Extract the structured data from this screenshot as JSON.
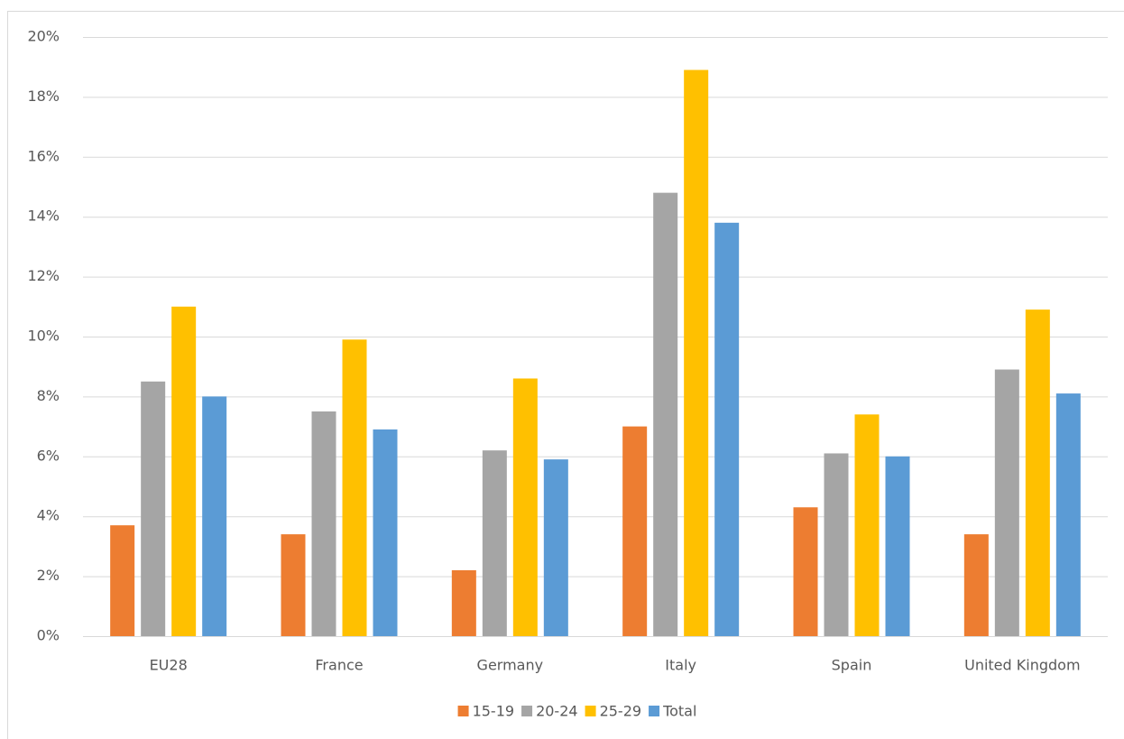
{
  "chart_data": {
    "type": "bar",
    "categories": [
      "EU28",
      "France",
      "Germany",
      "Italy",
      "Spain",
      "United Kingdom"
    ],
    "series": [
      {
        "name": "15-19",
        "color": "#ed7d31",
        "values": [
          3.7,
          3.4,
          2.2,
          7.0,
          4.3,
          3.4
        ]
      },
      {
        "name": "20-24",
        "color": "#a5a5a5",
        "values": [
          8.5,
          7.5,
          6.2,
          14.8,
          6.1,
          8.9
        ]
      },
      {
        "name": "25-29",
        "color": "#ffc000",
        "values": [
          11.0,
          9.9,
          8.6,
          18.9,
          7.4,
          10.9
        ]
      },
      {
        "name": "Total",
        "color": "#5b9bd5",
        "values": [
          8.0,
          6.9,
          5.9,
          13.8,
          6.0,
          8.1
        ]
      }
    ],
    "ylim": [
      0,
      20
    ],
    "yticks": [
      {
        "value": 0,
        "label": "0%"
      },
      {
        "value": 2,
        "label": "2%"
      },
      {
        "value": 4,
        "label": "4%"
      },
      {
        "value": 6,
        "label": "6%"
      },
      {
        "value": 8,
        "label": "8%"
      },
      {
        "value": 10,
        "label": "10%"
      },
      {
        "value": 12,
        "label": "12%"
      },
      {
        "value": 14,
        "label": "14%"
      },
      {
        "value": 16,
        "label": "16%"
      },
      {
        "value": 18,
        "label": "18%"
      },
      {
        "value": 20,
        "label": "20%"
      }
    ],
    "grid": true,
    "legend": "bottom"
  }
}
